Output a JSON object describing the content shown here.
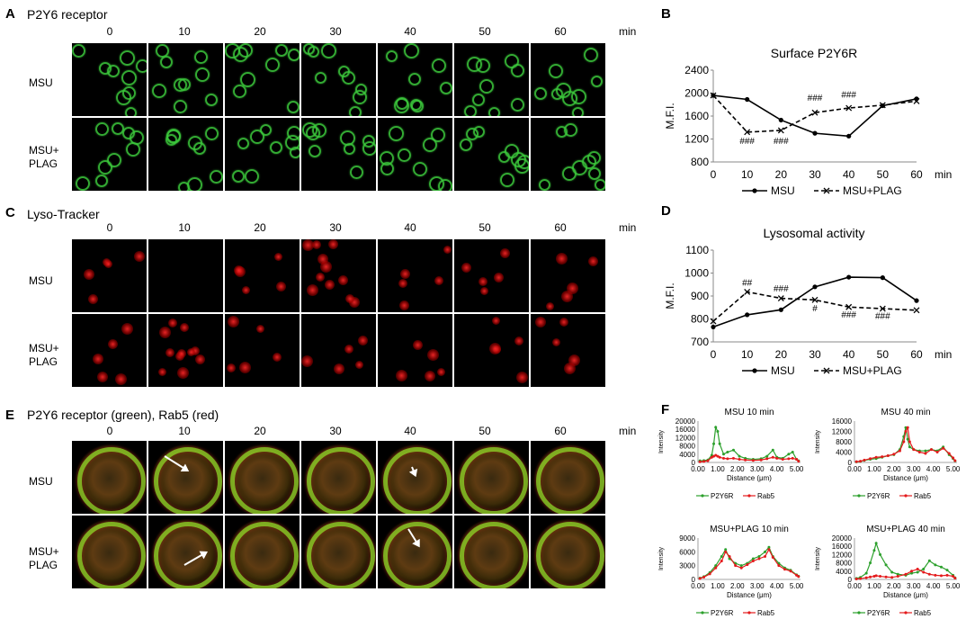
{
  "panel_a": {
    "letter": "A",
    "title": "P2Y6 receptor"
  },
  "panel_b": {
    "letter": "B"
  },
  "panel_c": {
    "letter": "C",
    "title": "Lyso-Tracker"
  },
  "panel_d": {
    "letter": "D"
  },
  "panel_e": {
    "letter": "E",
    "title": "P2Y6 receptor (green), Rab5 (red)"
  },
  "panel_f": {
    "letter": "F"
  },
  "time_labels": [
    "0",
    "10",
    "20",
    "30",
    "40",
    "50",
    "60"
  ],
  "time_unit": "min",
  "row_labels": {
    "msu": "MSU",
    "msu_plag_line1": "MSU+",
    "msu_plag_line2": "PLAG"
  },
  "colors": {
    "green": "#2ca02c",
    "red": "#e41a1c"
  },
  "chart_data": [
    {
      "id": "B",
      "type": "line",
      "title": "Surface P2Y6R",
      "ylabel": "M.F.I.",
      "xlabel": "min",
      "x": [
        0,
        10,
        20,
        30,
        40,
        50,
        60
      ],
      "ylim": [
        800,
        2400
      ],
      "yticks": [
        800,
        1200,
        1600,
        2000,
        2400
      ],
      "series": [
        {
          "name": "MSU",
          "values": [
            1960,
            1890,
            1530,
            1300,
            1250,
            1780,
            1900
          ],
          "style": "solid",
          "marker": "dot"
        },
        {
          "name": "MSU+PLAG",
          "values": [
            1960,
            1320,
            1350,
            1660,
            1740,
            1790,
            1860
          ],
          "style": "dashed",
          "marker": "x"
        }
      ],
      "annotations": [
        {
          "text": "###",
          "x": 10,
          "y": 1110
        },
        {
          "text": "###",
          "x": 20,
          "y": 1110
        },
        {
          "text": "###",
          "x": 30,
          "y": 1870
        },
        {
          "text": "###",
          "x": 40,
          "y": 1920
        }
      ],
      "legend_position": "bottom"
    },
    {
      "id": "D",
      "type": "line",
      "title": "Lysosomal activity",
      "ylabel": "M.F.I.",
      "xlabel": "min",
      "x": [
        0,
        10,
        20,
        30,
        40,
        50,
        60
      ],
      "ylim": [
        700,
        1100
      ],
      "yticks": [
        700,
        800,
        900,
        1000,
        1100
      ],
      "series": [
        {
          "name": "MSU",
          "values": [
            765,
            818,
            840,
            940,
            982,
            980,
            880
          ],
          "style": "solid",
          "marker": "dot"
        },
        {
          "name": "MSU+PLAG",
          "values": [
            790,
            918,
            890,
            883,
            852,
            845,
            838
          ],
          "style": "dashed",
          "marker": "x"
        }
      ],
      "annotations": [
        {
          "text": "##",
          "x": 10,
          "y": 945
        },
        {
          "text": "###",
          "x": 20,
          "y": 920
        },
        {
          "text": "#",
          "x": 30,
          "y": 833
        },
        {
          "text": "###",
          "x": 40,
          "y": 805
        },
        {
          "text": "###",
          "x": 50,
          "y": 800
        }
      ],
      "legend_position": "bottom"
    },
    {
      "id": "F1",
      "type": "line",
      "title": "MSU 10 min",
      "ylabel": "Intensity",
      "xlabel": "Distance (μm)",
      "xlim": [
        0,
        5.2
      ],
      "xticks": [
        0,
        1,
        2,
        3,
        4,
        5
      ],
      "ylim": [
        0,
        20000
      ],
      "yticks": [
        0,
        4000,
        8000,
        12000,
        16000,
        20000
      ],
      "x": [
        0.1,
        0.3,
        0.5,
        0.7,
        0.8,
        0.9,
        1.0,
        1.1,
        1.3,
        1.5,
        1.8,
        2.1,
        2.4,
        2.8,
        3.2,
        3.5,
        3.8,
        4.0,
        4.3,
        4.6,
        4.8,
        5.0,
        5.1
      ],
      "series": [
        {
          "name": "P2Y6R",
          "values": [
            800,
            900,
            1200,
            3500,
            9000,
            17000,
            15000,
            9000,
            4000,
            5000,
            6000,
            3000,
            2000,
            1500,
            1800,
            3000,
            6000,
            2500,
            2000,
            4000,
            5000,
            1500,
            800
          ]
        },
        {
          "name": "Rab5",
          "values": [
            300,
            500,
            800,
            2500,
            3000,
            3500,
            3000,
            2500,
            2000,
            1800,
            2000,
            1500,
            1200,
            1000,
            1200,
            1800,
            2500,
            2000,
            1500,
            1800,
            2000,
            1500,
            600
          ]
        }
      ]
    },
    {
      "id": "F2",
      "type": "line",
      "title": "MSU 40 min",
      "ylabel": "Intensity",
      "xlabel": "Distance (μm)",
      "xlim": [
        0,
        5.2
      ],
      "xticks": [
        0,
        1,
        2,
        3,
        4,
        5
      ],
      "ylim": [
        0,
        16000
      ],
      "yticks": [
        0,
        4000,
        8000,
        12000,
        16000
      ],
      "x": [
        0.1,
        0.3,
        0.5,
        0.8,
        1.1,
        1.4,
        1.7,
        2.0,
        2.3,
        2.5,
        2.6,
        2.7,
        2.8,
        3.0,
        3.3,
        3.6,
        3.9,
        4.2,
        4.5,
        4.8,
        5.0,
        5.1
      ],
      "series": [
        {
          "name": "P2Y6R",
          "values": [
            200,
            400,
            800,
            1200,
            1500,
            2000,
            2600,
            3000,
            5000,
            10000,
            13500,
            9000,
            6000,
            5000,
            4500,
            4500,
            5000,
            4500,
            6000,
            3000,
            1500,
            600
          ]
        },
        {
          "name": "Rab5",
          "values": [
            300,
            500,
            900,
            1500,
            2000,
            2200,
            2600,
            3200,
            4500,
            8000,
            12000,
            13500,
            8000,
            5000,
            4000,
            3500,
            5000,
            4000,
            5500,
            3500,
            1800,
            700
          ]
        }
      ]
    },
    {
      "id": "F3",
      "type": "line",
      "title": "MSU+PLAG 10 min",
      "ylabel": "Intensity",
      "xlabel": "Distance (μm)",
      "xlim": [
        0,
        5.2
      ],
      "xticks": [
        0,
        1,
        2,
        3,
        4,
        5
      ],
      "ylim": [
        0,
        9000
      ],
      "yticks": [
        0,
        3000,
        6000,
        9000
      ],
      "x": [
        0.1,
        0.3,
        0.6,
        0.9,
        1.2,
        1.4,
        1.6,
        1.9,
        2.2,
        2.5,
        2.8,
        3.1,
        3.4,
        3.6,
        3.8,
        4.1,
        4.4,
        4.7,
        5.0,
        5.1
      ],
      "series": [
        {
          "name": "P2Y6R",
          "values": [
            300,
            600,
            1500,
            3000,
            5000,
            6500,
            4500,
            3500,
            3000,
            3500,
            4500,
            5000,
            6000,
            7000,
            5000,
            3500,
            2500,
            2000,
            1000,
            700
          ]
        },
        {
          "name": "Rab5",
          "values": [
            200,
            500,
            1200,
            2500,
            4000,
            6000,
            5000,
            3000,
            2500,
            3200,
            4000,
            4500,
            5000,
            6500,
            4800,
            3000,
            2200,
            1800,
            900,
            600
          ]
        }
      ]
    },
    {
      "id": "F4",
      "type": "line",
      "title": "MSU+PLAG 40 min",
      "ylabel": "Intensity",
      "xlabel": "Distance (μm)",
      "xlim": [
        0,
        5.2
      ],
      "xticks": [
        0,
        1,
        2,
        3,
        4,
        5
      ],
      "ylim": [
        0,
        20000
      ],
      "yticks": [
        0,
        4000,
        8000,
        12000,
        16000,
        20000
      ],
      "x": [
        0.1,
        0.3,
        0.6,
        0.8,
        1.0,
        1.1,
        1.3,
        1.6,
        1.9,
        2.2,
        2.6,
        2.9,
        3.2,
        3.5,
        3.8,
        4.1,
        4.4,
        4.7,
        5.0,
        5.1
      ],
      "series": [
        {
          "name": "P2Y6R",
          "values": [
            500,
            1000,
            3000,
            8000,
            14000,
            17500,
            12000,
            7000,
            3500,
            2500,
            2000,
            3000,
            3500,
            5000,
            9000,
            7000,
            6000,
            4500,
            2000,
            800
          ]
        },
        {
          "name": "Rab5",
          "values": [
            200,
            400,
            800,
            1200,
            1500,
            1800,
            1500,
            1200,
            1000,
            1500,
            2500,
            4000,
            5000,
            3500,
            2500,
            2000,
            1800,
            2000,
            1500,
            600
          ]
        }
      ]
    }
  ]
}
